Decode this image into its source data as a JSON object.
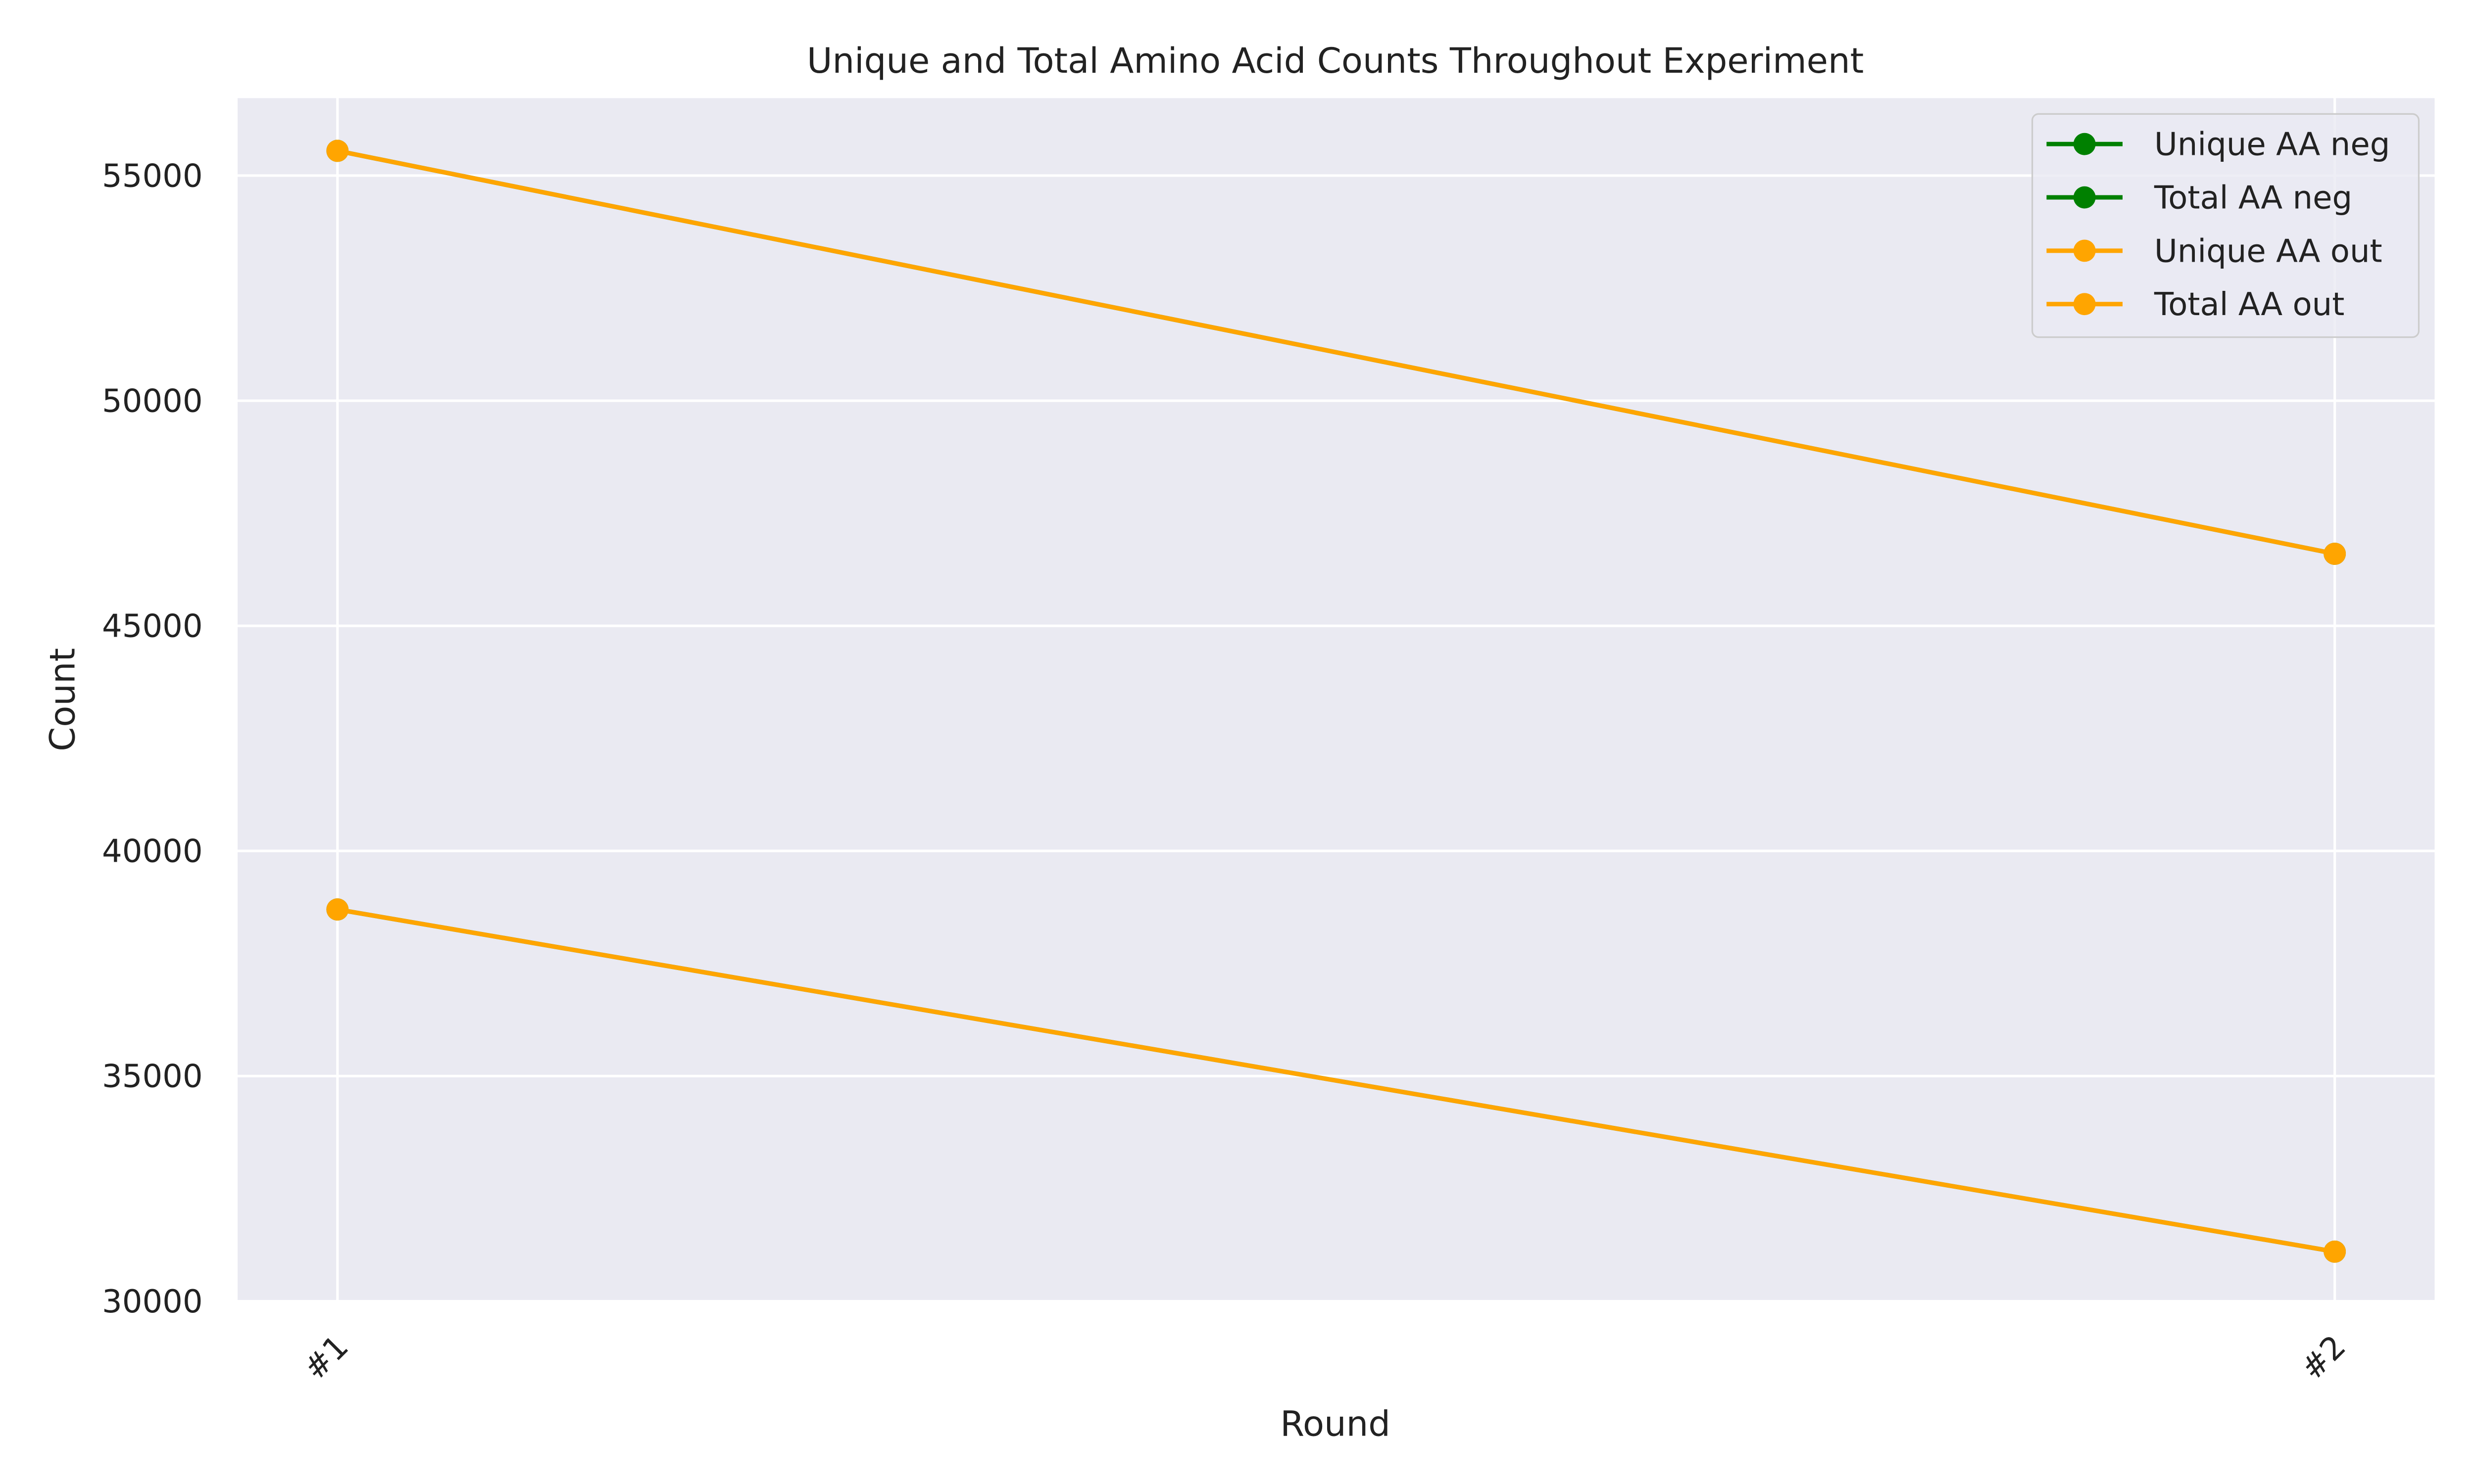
{
  "chart_data": {
    "type": "line",
    "title": "Unique and Total Amino Acid Counts Throughout Experiment",
    "x_label": "Round",
    "y_label": "Count",
    "categories": [
      "#1",
      "#2"
    ],
    "series": [
      {
        "name": "Unique AA neg",
        "color": "#008000",
        "values": [
          38700,
          31100
        ]
      },
      {
        "name": "Total AA neg",
        "color": "#008000",
        "values": [
          55550,
          46600
        ]
      },
      {
        "name": "Unique AA out",
        "color": "#ffa500",
        "values": [
          38700,
          31100
        ]
      },
      {
        "name": "Total AA out",
        "color": "#ffa500",
        "values": [
          55550,
          46600
        ]
      }
    ],
    "ylim": [
      30000,
      56720
    ],
    "yticks": [
      30000,
      35000,
      40000,
      45000,
      50000,
      55000
    ],
    "grid": true,
    "legend": "upper right"
  }
}
